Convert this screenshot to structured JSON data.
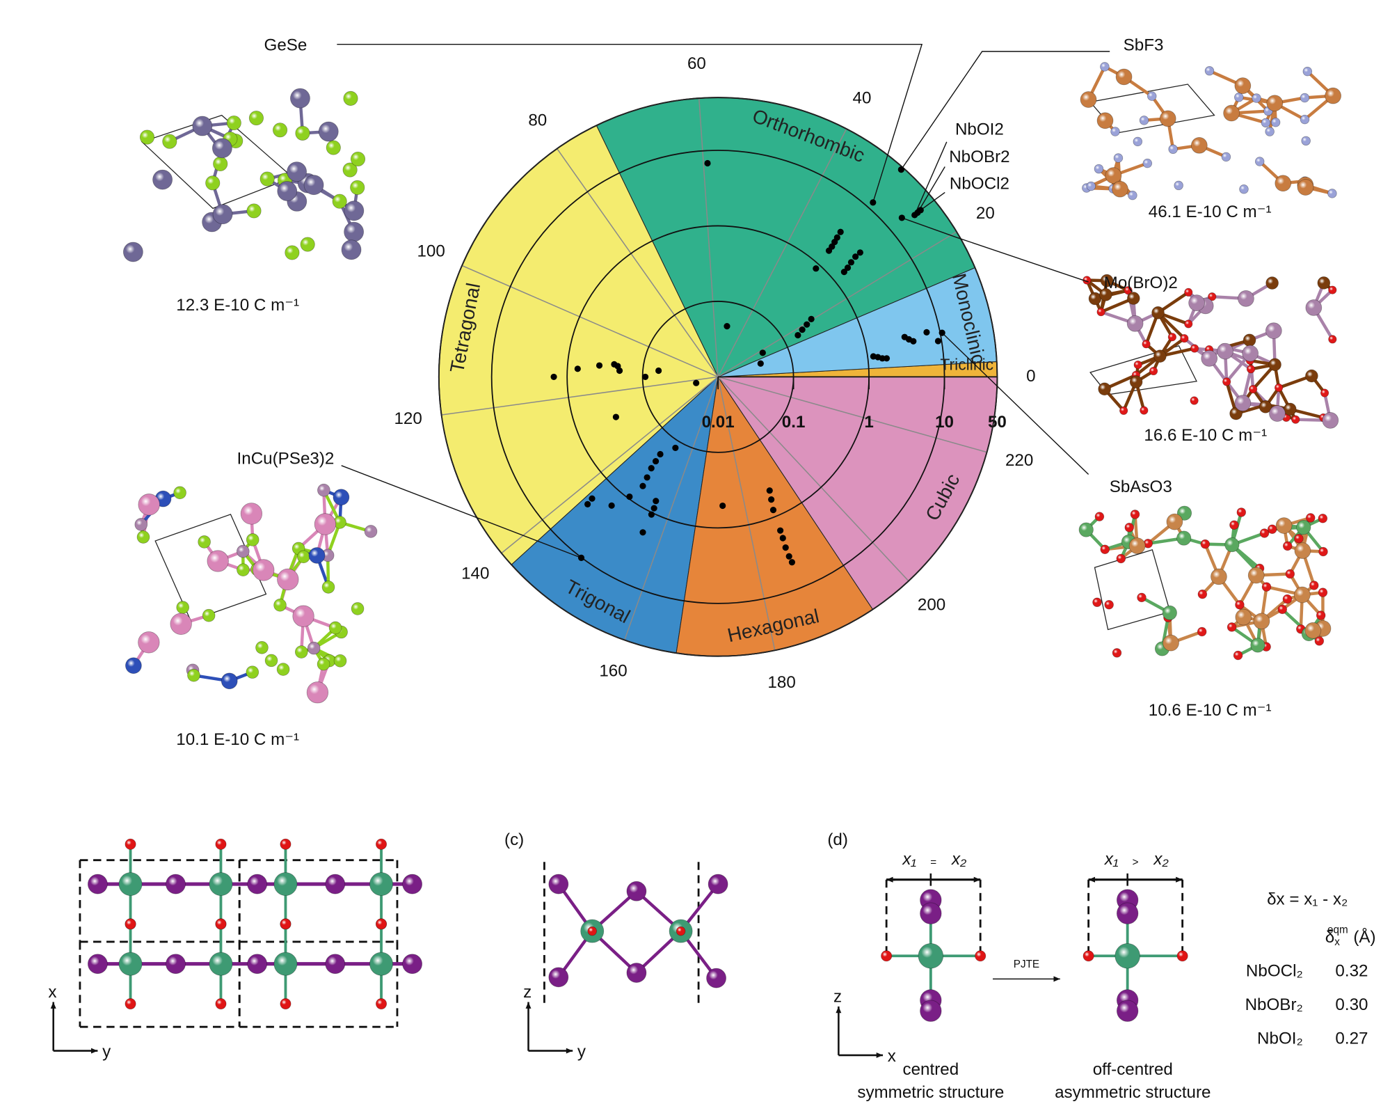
{
  "chart_data": {
    "type": "polar-scatter",
    "thetalim": [
      0,
      230
    ],
    "thetaticks": [
      0,
      20,
      40,
      60,
      80,
      100,
      120,
      140,
      160,
      180,
      200,
      220
    ],
    "rlim": [
      0.01,
      50
    ],
    "rticks": [
      0.01,
      0.1,
      1,
      10,
      50
    ],
    "rscale": "log",
    "grid": true,
    "sectors": [
      {
        "name": "Triclinic",
        "start": 0,
        "end": 2,
        "color": "#efb43a"
      },
      {
        "name": "Monoclinic",
        "start": 2,
        "end": 14.7,
        "color": "#7fc6ee"
      },
      {
        "name": "Orthorhombic",
        "start": 14.7,
        "end": 74,
        "color": "#30b18c"
      },
      {
        "name": "Tetragonal",
        "start": 74,
        "end": 142,
        "color": "#f4ec6f"
      },
      {
        "name": "Trigonal",
        "start": 142,
        "end": 167,
        "color": "#3b8bc8"
      },
      {
        "name": "Hexagonal",
        "start": 167,
        "end": 194,
        "color": "#e6853a"
      },
      {
        "name": "Cubic",
        "start": 194,
        "end": 230,
        "color": "#dc93bd"
      }
    ],
    "series": [
      {
        "color": "#000000",
        "theta": [
          59.3,
          31.8,
          31.6,
          31.4,
          31.2,
          31.1,
          26.3,
          26.3,
          26.0,
          25.6,
          25.4,
          30.6,
          20.3,
          19.5,
          18.7,
          17.6,
          51.1,
          18.1,
          11.1,
          7.7,
          7.1,
          6.6,
          7.7,
          5.9,
          4.8,
          4.5,
          4.1,
          4.0,
          115,
          112.9,
          111.5,
          110.6,
          111.1,
          112.7,
          115,
          111.2,
          125,
          128.7,
          149.0,
          149.2,
          149.4,
          150,
          150.4,
          152.7,
          155.5,
          155.9,
          156,
          149.2,
          147.2,
          143.1,
          143.3,
          156,
          173.8,
          188.1,
          187.5,
          186.9,
          186.6,
          186.5,
          186.3,
          186.3,
          186.4
        ],
        "r": [
          6.8,
          3.26,
          2.68,
          2.3,
          1.96,
          1.68,
          3.17,
          2.62,
          2.12,
          1.76,
          1.49,
          0.86,
          0.284,
          0.232,
          0.19,
          0.156,
          0.048,
          0.047,
          0.039,
          3.37,
          3.78,
          4.27,
          6.7,
          9.0,
          1.19,
          1.36,
          1.55,
          1.77,
          1.5,
          0.73,
          0.38,
          0.243,
          0.217,
          0.203,
          0.092,
          0.062,
          0.02,
          0.284,
          0.19,
          0.245,
          0.315,
          0.427,
          0.57,
          0.125,
          0.69,
          0.86,
          1.06,
          0.94,
          1.63,
          2.09,
          2.6,
          1.94,
          0.51,
          0.45,
          0.59,
          0.81,
          1.57,
          2.0,
          2.7,
          3.6,
          4.4
        ]
      }
    ],
    "annotations": [
      {
        "text": "GeSe",
        "theta": 30.9,
        "r": 12.3,
        "caption": "12.3 E-10 C m⁻¹"
      },
      {
        "text": "SbF3",
        "theta": 31.0,
        "r": 46.1,
        "caption": "46.1 E-10 C m⁻¹"
      },
      {
        "text": "NbOI2",
        "theta": 25.2,
        "r": 23.6
      },
      {
        "text": "NbOBr2",
        "theta": 25.2,
        "r": 26.5
      },
      {
        "text": "NbOCl2",
        "theta": 25.2,
        "r": 29.9
      },
      {
        "text": "Mo(BrO)2",
        "theta": 26.1,
        "r": 16.6,
        "caption": "16.6 E-10 C m⁻¹"
      },
      {
        "text": "SbAsO3",
        "theta": 7.1,
        "r": 10.6,
        "caption": "10.6 E-10 C m⁻¹"
      },
      {
        "text": "InCu(PSe3)2",
        "theta": 148.8,
        "r": 10.1,
        "caption": "10.1 E-10 C m⁻¹"
      }
    ]
  },
  "panels": {
    "b": {
      "axis_x": "x",
      "axis_y": "y"
    },
    "c": {
      "label": "(c)",
      "axis_z": "z",
      "axis_y": "y"
    },
    "d": {
      "label": "(d)",
      "left": {
        "x1": "x₁",
        "relation": "=",
        "x2": "x₂",
        "caption_1": "centred",
        "caption_2": "symmetric structure"
      },
      "right": {
        "x1": "x₁",
        "relation": ">",
        "x2": "x₂",
        "caption_1": "off-centred",
        "caption_2": "asymmetric structure"
      },
      "arrow_label": "PJTE",
      "axis_z": "z",
      "axis_x": "x",
      "formula": "δx = x₁ - x₂",
      "header": {
        "symbol": "δ",
        "subscript": "x",
        "superscript": "eqm",
        "unit": "(Å)"
      },
      "table": [
        [
          "NbOCl₂",
          "0.32"
        ],
        [
          "NbOBr₂",
          "0.30"
        ],
        [
          "NbOI₂",
          "0.27"
        ]
      ]
    }
  }
}
